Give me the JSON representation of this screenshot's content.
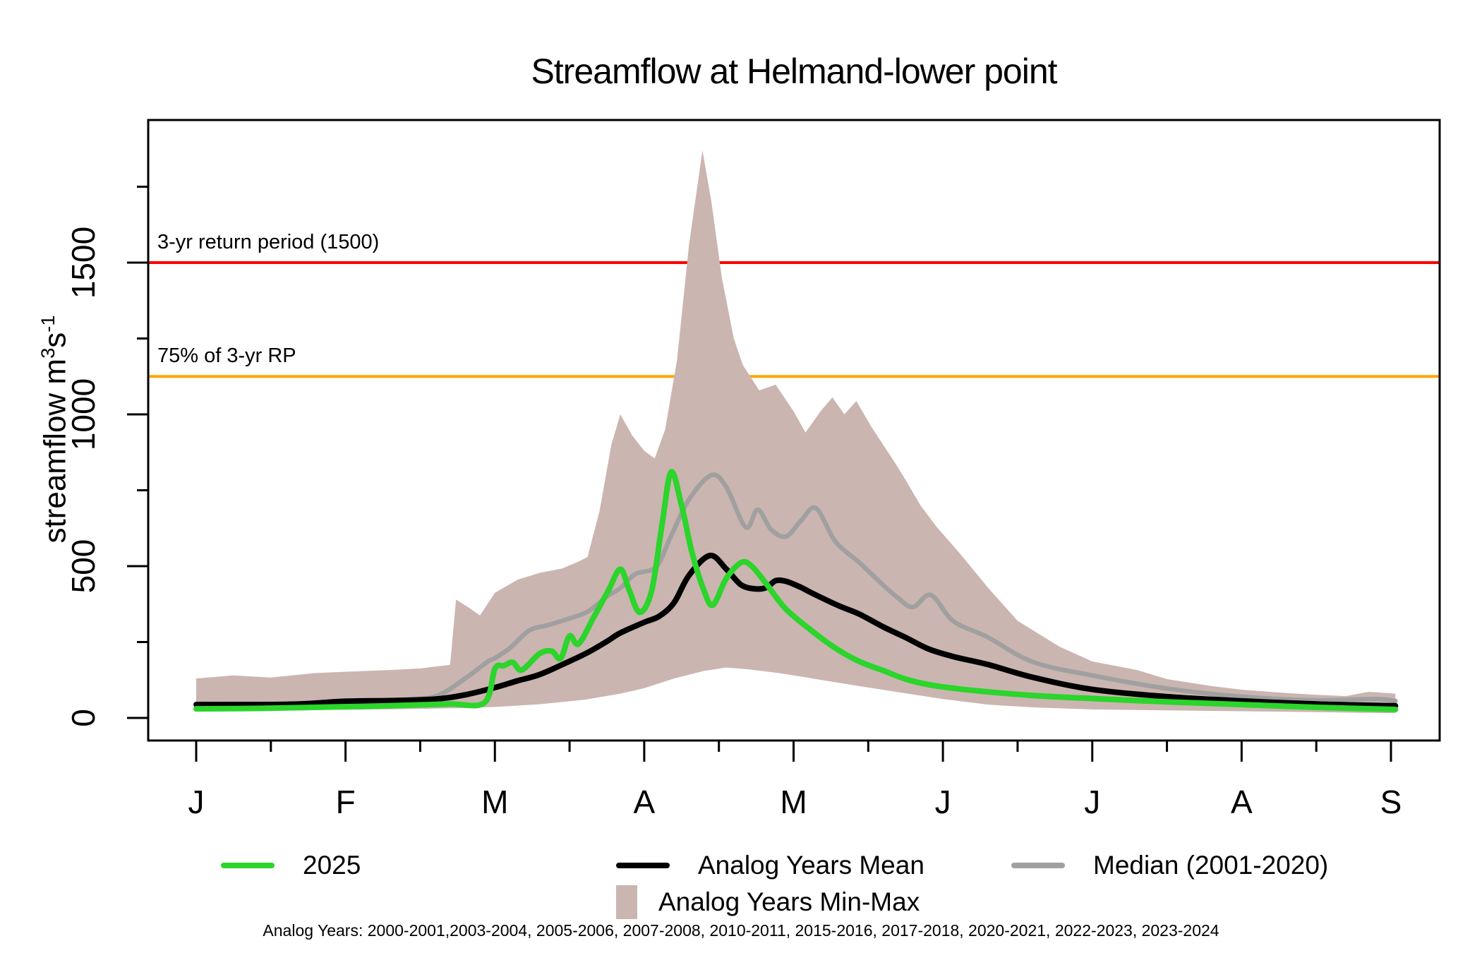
{
  "title": "Streamflow at Helmand-lower point",
  "y_axis_label": {
    "main": "streamflow m",
    "sup1": "3",
    "mid": "s",
    "sup2": "-1"
  },
  "caption": "Analog Years: 2000-2001,2003-2004, 2005-2006, 2007-2008, 2010-2011, 2015-2016, 2017-2018, 2020-2021, 2022-2023, 2023-2024",
  "legend": {
    "items": [
      {
        "label": "2025",
        "color": "#2BD52B",
        "type": "line"
      },
      {
        "label": "Analog Years Mean",
        "color": "#000000",
        "type": "line"
      },
      {
        "label": "Median (2001-2020)",
        "color": "#A0A0A0",
        "type": "line"
      },
      {
        "label": "Analog Years Min-Max",
        "color": "#CBB5B0",
        "type": "rect"
      }
    ]
  },
  "chart_data": {
    "type": "area",
    "title": "Streamflow at Helmand-lower point",
    "xlabel": "",
    "ylabel": "streamflow m3 s-1",
    "x_axis": {
      "tick_labels": [
        "J",
        "F",
        "M",
        "A",
        "M",
        "J",
        "J",
        "A",
        "S"
      ],
      "tick_positions_months": [
        0,
        1,
        2,
        3,
        4,
        5,
        6,
        7,
        8
      ],
      "minor_tick_positions": [
        0.5,
        1.5,
        2.5,
        3.5,
        4.5,
        5.5,
        6.5,
        7.5
      ],
      "range_months": [
        0,
        8.03
      ],
      "grid": false
    },
    "y_axis": {
      "ticks": [
        0,
        500,
        1000,
        1500
      ],
      "minor_ticks": [
        250,
        750,
        1250,
        1750
      ],
      "range": [
        0,
        1970
      ]
    },
    "thresholds": [
      {
        "label": "3-yr return period (1500)",
        "value": 1500,
        "color": "#FF0000"
      },
      {
        "label": "75% of 3-yr RP",
        "value": 1125,
        "color": "#FFA500"
      }
    ],
    "band": {
      "name": "Analog Years Min-Max",
      "color": "#CBB5B0",
      "upper": [
        [
          0,
          130
        ],
        [
          0.25,
          140
        ],
        [
          0.5,
          133
        ],
        [
          0.8,
          148
        ],
        [
          1.0,
          152
        ],
        [
          1.3,
          158
        ],
        [
          1.5,
          163
        ],
        [
          1.7,
          175
        ],
        [
          1.74,
          390
        ],
        [
          1.82,
          365
        ],
        [
          1.9,
          338
        ],
        [
          2.0,
          412
        ],
        [
          2.15,
          455
        ],
        [
          2.3,
          478
        ],
        [
          2.45,
          492
        ],
        [
          2.56,
          515
        ],
        [
          2.62,
          530
        ],
        [
          2.7,
          680
        ],
        [
          2.78,
          900
        ],
        [
          2.84,
          1000
        ],
        [
          2.92,
          930
        ],
        [
          3.0,
          880
        ],
        [
          3.07,
          855
        ],
        [
          3.14,
          950
        ],
        [
          3.22,
          1180
        ],
        [
          3.3,
          1560
        ],
        [
          3.39,
          1870
        ],
        [
          3.45,
          1700
        ],
        [
          3.52,
          1450
        ],
        [
          3.6,
          1250
        ],
        [
          3.66,
          1163
        ],
        [
          3.77,
          1079
        ],
        [
          3.88,
          1098
        ],
        [
          4.0,
          1010
        ],
        [
          4.08,
          940
        ],
        [
          4.18,
          1010
        ],
        [
          4.26,
          1056
        ],
        [
          4.34,
          1000
        ],
        [
          4.42,
          1044
        ],
        [
          4.52,
          960
        ],
        [
          4.59,
          907
        ],
        [
          4.68,
          840
        ],
        [
          4.75,
          784
        ],
        [
          4.85,
          700
        ],
        [
          4.96,
          628
        ],
        [
          5.11,
          544
        ],
        [
          5.3,
          430
        ],
        [
          5.5,
          320
        ],
        [
          5.78,
          235
        ],
        [
          6.0,
          186
        ],
        [
          6.3,
          158
        ],
        [
          6.5,
          128
        ],
        [
          6.8,
          105
        ],
        [
          7.0,
          93
        ],
        [
          7.3,
          82
        ],
        [
          7.5,
          76
        ],
        [
          7.7,
          72
        ],
        [
          7.85,
          86
        ],
        [
          8.03,
          80
        ]
      ],
      "lower": [
        [
          0,
          21
        ],
        [
          0.3,
          23
        ],
        [
          0.6,
          25
        ],
        [
          1.0,
          27
        ],
        [
          1.4,
          29
        ],
        [
          1.74,
          32
        ],
        [
          2.0,
          36
        ],
        [
          2.3,
          45
        ],
        [
          2.6,
          60
        ],
        [
          2.84,
          80
        ],
        [
          3.0,
          98
        ],
        [
          3.2,
          130
        ],
        [
          3.4,
          155
        ],
        [
          3.55,
          166
        ],
        [
          3.7,
          160
        ],
        [
          3.9,
          148
        ],
        [
          4.1,
          132
        ],
        [
          4.4,
          108
        ],
        [
          4.7,
          85
        ],
        [
          5.0,
          62
        ],
        [
          5.3,
          44
        ],
        [
          5.6,
          35
        ],
        [
          6.0,
          28
        ],
        [
          6.5,
          25
        ],
        [
          7.0,
          22
        ],
        [
          7.5,
          19
        ],
        [
          7.8,
          17
        ],
        [
          8.03,
          16
        ]
      ]
    },
    "series": [
      {
        "name": "2025",
        "color": "#2BD52B",
        "width": 8,
        "points": [
          [
            0,
            30
          ],
          [
            0.3,
            31
          ],
          [
            0.6,
            33
          ],
          [
            0.9,
            36
          ],
          [
            1.1,
            38
          ],
          [
            1.3,
            40
          ],
          [
            1.5,
            43
          ],
          [
            1.7,
            46
          ],
          [
            1.93,
            50
          ],
          [
            2.0,
            162
          ],
          [
            2.06,
            172
          ],
          [
            2.12,
            183
          ],
          [
            2.18,
            158
          ],
          [
            2.3,
            212
          ],
          [
            2.38,
            220
          ],
          [
            2.44,
            196
          ],
          [
            2.5,
            270
          ],
          [
            2.56,
            244
          ],
          [
            2.66,
            330
          ],
          [
            2.76,
            420
          ],
          [
            2.84,
            490
          ],
          [
            2.9,
            420
          ],
          [
            2.97,
            348
          ],
          [
            3.05,
            420
          ],
          [
            3.12,
            640
          ],
          [
            3.18,
            810
          ],
          [
            3.25,
            700
          ],
          [
            3.32,
            545
          ],
          [
            3.4,
            420
          ],
          [
            3.46,
            372
          ],
          [
            3.55,
            460
          ],
          [
            3.65,
            512
          ],
          [
            3.72,
            500
          ],
          [
            3.82,
            440
          ],
          [
            3.95,
            358
          ],
          [
            4.12,
            288
          ],
          [
            4.28,
            230
          ],
          [
            4.44,
            186
          ],
          [
            4.6,
            156
          ],
          [
            4.75,
            128
          ],
          [
            4.91,
            109
          ],
          [
            5.1,
            96
          ],
          [
            5.3,
            86
          ],
          [
            5.6,
            74
          ],
          [
            6.0,
            64
          ],
          [
            6.5,
            53
          ],
          [
            7.0,
            44
          ],
          [
            7.5,
            35
          ],
          [
            7.8,
            31
          ],
          [
            8.03,
            28
          ]
        ]
      },
      {
        "name": "Analog Years Mean",
        "color": "#000000",
        "width": 8,
        "points": [
          [
            0,
            44
          ],
          [
            0.4,
            44
          ],
          [
            0.7,
            46
          ],
          [
            1.0,
            55
          ],
          [
            1.3,
            57
          ],
          [
            1.6,
            62
          ],
          [
            1.8,
            76
          ],
          [
            2.0,
            100
          ],
          [
            2.15,
            122
          ],
          [
            2.3,
            143
          ],
          [
            2.47,
            180
          ],
          [
            2.62,
            215
          ],
          [
            2.75,
            252
          ],
          [
            2.84,
            280
          ],
          [
            3.0,
            315
          ],
          [
            3.1,
            335
          ],
          [
            3.2,
            380
          ],
          [
            3.3,
            470
          ],
          [
            3.44,
            535
          ],
          [
            3.55,
            490
          ],
          [
            3.65,
            438
          ],
          [
            3.75,
            425
          ],
          [
            3.82,
            430
          ],
          [
            3.88,
            452
          ],
          [
            3.95,
            450
          ],
          [
            4.05,
            430
          ],
          [
            4.12,
            412
          ],
          [
            4.3,
            370
          ],
          [
            4.44,
            342
          ],
          [
            4.6,
            300
          ],
          [
            4.75,
            265
          ],
          [
            4.9,
            228
          ],
          [
            5.07,
            202
          ],
          [
            5.3,
            176
          ],
          [
            5.6,
            134
          ],
          [
            6.0,
            94
          ],
          [
            6.5,
            70
          ],
          [
            7.0,
            56
          ],
          [
            7.5,
            46
          ],
          [
            7.8,
            42
          ],
          [
            8.03,
            40
          ]
        ]
      },
      {
        "name": "Median (2001-2020)",
        "color": "#A0A0A0",
        "width": 6.5,
        "points": [
          [
            0,
            46
          ],
          [
            0.3,
            44
          ],
          [
            0.6,
            47
          ],
          [
            0.9,
            52
          ],
          [
            1.2,
            57
          ],
          [
            1.45,
            62
          ],
          [
            1.62,
            74
          ],
          [
            1.81,
            133
          ],
          [
            1.95,
            185
          ],
          [
            2.0,
            197
          ],
          [
            2.1,
            230
          ],
          [
            2.23,
            288
          ],
          [
            2.35,
            305
          ],
          [
            2.47,
            323
          ],
          [
            2.62,
            350
          ],
          [
            2.75,
            400
          ],
          [
            2.84,
            428
          ],
          [
            2.94,
            474
          ],
          [
            3.08,
            498
          ],
          [
            3.18,
            600
          ],
          [
            3.3,
            720
          ],
          [
            3.45,
            800
          ],
          [
            3.55,
            760
          ],
          [
            3.68,
            628
          ],
          [
            3.76,
            686
          ],
          [
            3.85,
            620
          ],
          [
            3.95,
            598
          ],
          [
            4.05,
            650
          ],
          [
            4.15,
            691
          ],
          [
            4.28,
            581
          ],
          [
            4.44,
            512
          ],
          [
            4.59,
            442
          ],
          [
            4.7,
            395
          ],
          [
            4.8,
            365
          ],
          [
            4.92,
            405
          ],
          [
            5.07,
            319
          ],
          [
            5.3,
            266
          ],
          [
            5.6,
            185
          ],
          [
            6.0,
            140
          ],
          [
            6.5,
            97
          ],
          [
            7.0,
            70
          ],
          [
            7.5,
            58
          ],
          [
            7.9,
            62
          ],
          [
            8.03,
            56
          ]
        ]
      }
    ],
    "legend_position": "bottom"
  }
}
